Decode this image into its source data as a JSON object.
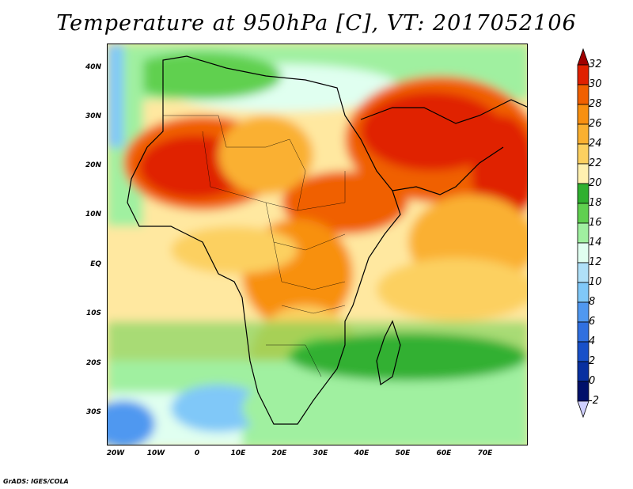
{
  "title": "Temperature at 950hPa [C], VT: 2017052106",
  "map": {
    "variable": "Temperature",
    "level": "950hPa",
    "units": "C",
    "valid_time": "2017052106",
    "lat_labels": [
      "40N",
      "30N",
      "20N",
      "10N",
      "EQ",
      "10S",
      "20S",
      "30S"
    ],
    "lon_labels": [
      "20W",
      "10W",
      "0",
      "10E",
      "20E",
      "30E",
      "40E",
      "50E",
      "60E",
      "70E"
    ]
  },
  "legend": {
    "levels": [
      "32",
      "30",
      "28",
      "26",
      "24",
      "22",
      "20",
      "18",
      "16",
      "14",
      "12",
      "10",
      "8",
      "6",
      "4",
      "2",
      "0",
      "-2"
    ],
    "colors": [
      "#a00000",
      "#e02000",
      "#f06000",
      "#f89010",
      "#fab030",
      "#fcd060",
      "#fff0b0",
      "#30b030",
      "#60d050",
      "#a0f0a0",
      "#e0fff0",
      "#b0e0f8",
      "#80c8f8",
      "#5098f0",
      "#3070e0",
      "#1850c8",
      "#0830a0",
      "#00106a",
      "#d0d0ff"
    ]
  },
  "footer": "GrADS: IGES/COLA"
}
